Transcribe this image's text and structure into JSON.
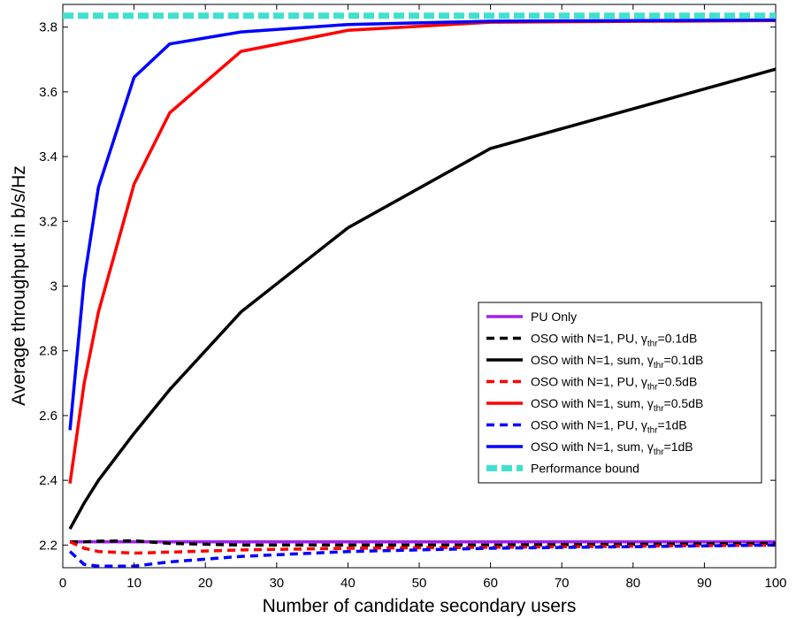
{
  "chart_data": {
    "type": "line",
    "title": "",
    "xlabel": "Number of candidate secondary users",
    "ylabel": "Average throughput in b/s/Hz",
    "xlim": [
      0,
      100
    ],
    "ylim": [
      2.13,
      3.87
    ],
    "xticks": [
      0,
      10,
      20,
      30,
      40,
      50,
      60,
      70,
      80,
      90,
      100
    ],
    "yticks": [
      2.2,
      2.4,
      2.6,
      2.8,
      3.0,
      3.2,
      3.4,
      3.6,
      3.8
    ],
    "ytick_labels": [
      "2.2",
      "2.4",
      "2.6",
      "2.8",
      "3",
      "3.2",
      "3.4",
      "3.6",
      "3.8"
    ],
    "grid": false,
    "legend_position": "right",
    "series": [
      {
        "name": "PU Only",
        "legend_main": "PU Only",
        "legend_sub": "",
        "legend_tail": "",
        "color": "#a020f0",
        "style": "solid",
        "x": [
          1,
          100
        ],
        "y": [
          2.21,
          2.21
        ]
      },
      {
        "name": "OSO with N=1, PU, γthr=0.1dB",
        "legend_main": "OSO with N=1, PU, γ",
        "legend_sub": "thr",
        "legend_tail": "=0.1dB",
        "color": "#000000",
        "style": "dashed",
        "x": [
          1,
          3,
          5,
          10,
          15,
          25,
          40,
          60,
          100
        ],
        "y": [
          2.21,
          2.21,
          2.212,
          2.213,
          2.205,
          2.2,
          2.2,
          2.2,
          2.205
        ]
      },
      {
        "name": "OSO with N=1, sum, γthr=0.1dB",
        "legend_main": "OSO with N=1, sum, γ",
        "legend_sub": "thr",
        "legend_tail": "=0.1dB",
        "color": "#000000",
        "style": "solid",
        "x": [
          1,
          3,
          5,
          10,
          15,
          25,
          40,
          60,
          100
        ],
        "y": [
          2.25,
          2.33,
          2.4,
          2.545,
          2.68,
          2.92,
          3.18,
          3.425,
          3.67
        ]
      },
      {
        "name": "OSO with N=1, PU, γthr=0.5dB",
        "legend_main": "OSO with N=1, PU, γ",
        "legend_sub": "thr",
        "legend_tail": "=0.5dB",
        "color": "#ff0000",
        "style": "dashed",
        "x": [
          1,
          3,
          5,
          10,
          15,
          25,
          40,
          60,
          100
        ],
        "y": [
          2.21,
          2.19,
          2.18,
          2.175,
          2.178,
          2.185,
          2.19,
          2.193,
          2.2
        ]
      },
      {
        "name": "OSO with N=1, sum, γthr=0.5dB",
        "legend_main": "OSO with N=1, sum, γ",
        "legend_sub": "thr",
        "legend_tail": "=0.5dB",
        "color": "#ff0000",
        "style": "solid",
        "x": [
          1,
          3,
          5,
          10,
          15,
          25,
          40,
          60,
          100
        ],
        "y": [
          2.39,
          2.7,
          2.92,
          3.315,
          3.535,
          3.725,
          3.79,
          3.815,
          3.82
        ]
      },
      {
        "name": "OSO with N=1, PU, γthr=1dB",
        "legend_main": "OSO with N=1, PU, γ",
        "legend_sub": "thr",
        "legend_tail": "=1dB",
        "color": "#0000ff",
        "style": "dashed",
        "x": [
          1,
          3,
          5,
          10,
          15,
          25,
          40,
          60,
          100
        ],
        "y": [
          2.18,
          2.14,
          2.135,
          2.135,
          2.148,
          2.165,
          2.18,
          2.19,
          2.2
        ]
      },
      {
        "name": "OSO with N=1, sum, γthr=1dB",
        "legend_main": "OSO with N=1, sum, γ",
        "legend_sub": "thr",
        "legend_tail": "=1dB",
        "color": "#0000ff",
        "style": "solid",
        "x": [
          1,
          3,
          5,
          10,
          15,
          25,
          40,
          60,
          100
        ],
        "y": [
          2.555,
          3.02,
          3.305,
          3.645,
          3.748,
          3.785,
          3.808,
          3.818,
          3.822
        ]
      },
      {
        "name": "Performance bound",
        "legend_main": "Performance bound",
        "legend_sub": "",
        "legend_tail": "",
        "color": "#40e0d0",
        "style": "dashed-thick",
        "x": [
          0,
          100
        ],
        "y": [
          3.835,
          3.835
        ]
      }
    ]
  }
}
